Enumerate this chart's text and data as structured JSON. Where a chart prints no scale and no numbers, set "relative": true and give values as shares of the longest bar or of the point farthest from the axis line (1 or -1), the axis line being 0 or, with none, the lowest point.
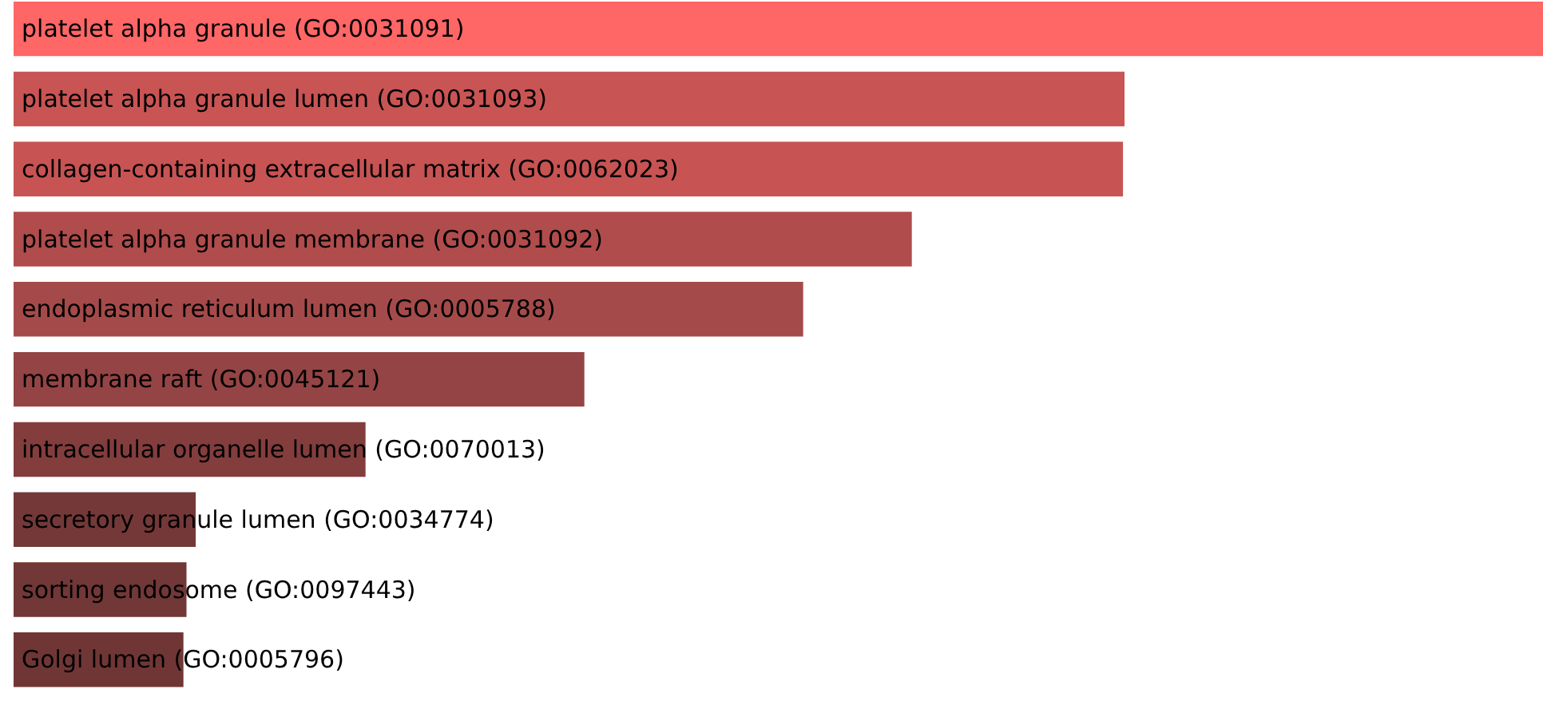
{
  "chart_data": {
    "type": "bar",
    "orientation": "horizontal",
    "relative": true,
    "categories": [
      "platelet alpha granule (GO:0031091)",
      "platelet alpha granule lumen (GO:0031093)",
      "collagen-containing extracellular matrix (GO:0062023)",
      "platelet alpha granule membrane (GO:0031092)",
      "endoplasmic reticulum lumen (GO:0005788)",
      "membrane raft (GO:0045121)",
      "intracellular organelle lumen (GO:0070013)",
      "secretory granule lumen (GO:0034774)",
      "sorting endosome (GO:0097443)",
      "Golgi lumen (GO:0005796)"
    ],
    "values": [
      1,
      0.726,
      0.725,
      0.587,
      0.516,
      0.373,
      0.23,
      0.119,
      0.113,
      0.111
    ],
    "colors": [
      "#ff6666",
      "#c95454",
      "#c75353",
      "#b04c4c",
      "#a54a4a",
      "#944444",
      "#833d3d",
      "#743838",
      "#723737",
      "#703636"
    ]
  }
}
